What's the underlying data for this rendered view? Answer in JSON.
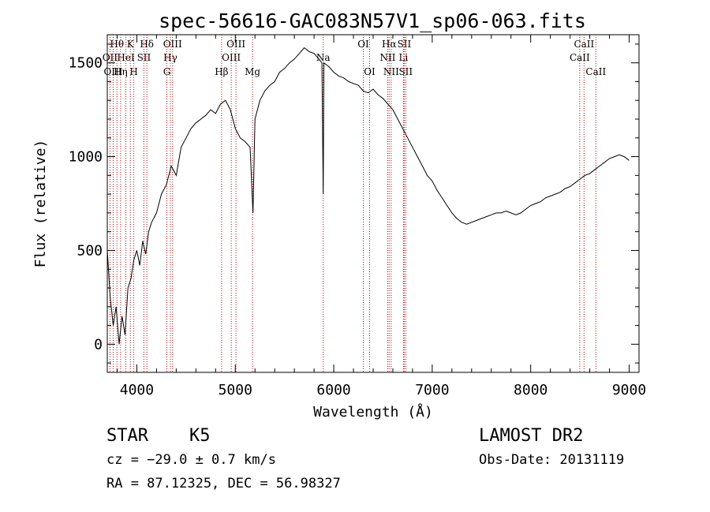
{
  "figure": {
    "title": "spec-56616-GAC083N57V1_sp06-063.fits",
    "object_class": "STAR",
    "subclass": "K5",
    "survey": "LAMOST DR2",
    "velocity": "cz = −29.0 ± 0.7 km/s",
    "obs_date": "Obs-Date: 20131119",
    "coords": "RA =  87.12325, DEC =  56.98327"
  },
  "chart_data": {
    "type": "line",
    "title": "spec-56616-GAC083N57V1_sp06-063.fits",
    "xlabel": "Wavelength (Å)",
    "ylabel": "Flux (relative)",
    "xlim": [
      3700,
      9100
    ],
    "ylim": [
      -150,
      1650
    ],
    "x_ticks": [
      4000,
      5000,
      6000,
      7000,
      8000,
      9000
    ],
    "y_ticks": [
      0,
      500,
      1000,
      1500
    ],
    "grid": false,
    "line_color": "#000000",
    "marker_color": "#cc0000",
    "series": [
      {
        "x": [
          3700,
          3730,
          3760,
          3790,
          3820,
          3850,
          3880,
          3910,
          3940,
          3970,
          4000,
          4030,
          4060,
          4090,
          4120,
          4150,
          4200,
          4250,
          4300,
          4350,
          4400,
          4450,
          4500,
          4550,
          4600,
          4650,
          4700,
          4750,
          4800,
          4850,
          4900,
          4950,
          5000,
          5050,
          5100,
          5150,
          5180,
          5200,
          5250,
          5300,
          5350,
          5400,
          5450,
          5500,
          5550,
          5600,
          5650,
          5700,
          5750,
          5800,
          5850,
          5880,
          5893,
          5900,
          5950,
          6000,
          6050,
          6100,
          6150,
          6200,
          6250,
          6300,
          6350,
          6400,
          6450,
          6500,
          6550,
          6600,
          6650,
          6700,
          6750,
          6800,
          6850,
          6900,
          6950,
          7000,
          7050,
          7100,
          7150,
          7200,
          7250,
          7300,
          7350,
          7400,
          7450,
          7500,
          7550,
          7600,
          7650,
          7700,
          7750,
          7800,
          7850,
          7900,
          7950,
          8000,
          8050,
          8100,
          8150,
          8200,
          8250,
          8300,
          8350,
          8400,
          8450,
          8500,
          8550,
          8600,
          8650,
          8700,
          8750,
          8800,
          8850,
          8900,
          8950,
          9000
        ],
        "y": [
          500,
          250,
          100,
          200,
          0,
          150,
          50,
          300,
          350,
          450,
          500,
          420,
          550,
          480,
          600,
          650,
          700,
          800,
          850,
          950,
          900,
          1050,
          1100,
          1150,
          1180,
          1200,
          1220,
          1250,
          1230,
          1280,
          1300,
          1250,
          1150,
          1100,
          1080,
          1050,
          700,
          1200,
          1300,
          1350,
          1380,
          1400,
          1450,
          1470,
          1500,
          1520,
          1550,
          1580,
          1560,
          1550,
          1520,
          1500,
          800,
          1500,
          1480,
          1450,
          1430,
          1420,
          1400,
          1390,
          1380,
          1350,
          1340,
          1360,
          1330,
          1310,
          1280,
          1250,
          1200,
          1150,
          1100,
          1050,
          1000,
          950,
          900,
          870,
          820,
          780,
          740,
          700,
          670,
          650,
          640,
          650,
          660,
          670,
          680,
          690,
          700,
          700,
          710,
          700,
          690,
          700,
          720,
          740,
          750,
          760,
          780,
          790,
          800,
          810,
          830,
          840,
          860,
          880,
          900,
          910,
          930,
          950,
          970,
          990,
          1000,
          1010,
          1000,
          980
        ]
      }
    ],
    "line_markers": [
      {
        "label": "Hθ",
        "x": 3798,
        "row": 0
      },
      {
        "label": "OII",
        "x": 3727,
        "row": 1
      },
      {
        "label": "OIII",
        "x": 3760,
        "row": 2
      },
      {
        "label": "K",
        "x": 3934,
        "row": 0
      },
      {
        "label": "HeI",
        "x": 3889,
        "row": 1
      },
      {
        "label": "Hη",
        "x": 3835,
        "row": 2
      },
      {
        "label": "Hδ",
        "x": 4102,
        "row": 0
      },
      {
        "label": "SII",
        "x": 4072,
        "row": 1
      },
      {
        "label": "H",
        "x": 3969,
        "row": 2
      },
      {
        "label": "OIII",
        "x": 4363,
        "row": 0
      },
      {
        "label": "Hγ",
        "x": 4341,
        "row": 1
      },
      {
        "label": "G",
        "x": 4305,
        "row": 2
      },
      {
        "label": "OIII",
        "x": 5007,
        "row": 0
      },
      {
        "label": "OIII",
        "x": 4959,
        "row": 1
      },
      {
        "label": "Hβ",
        "x": 4861,
        "row": 2
      },
      {
        "label": "Mg",
        "x": 5175,
        "row": 2
      },
      {
        "label": "Na",
        "x": 5893,
        "row": 1
      },
      {
        "label": "OI",
        "x": 6300,
        "row": 0
      },
      {
        "label": "OI",
        "x": 6364,
        "row": 2
      },
      {
        "label": "Hα",
        "x": 6563,
        "row": 0
      },
      {
        "label": "SII",
        "x": 6716,
        "row": 0
      },
      {
        "label": "NII",
        "x": 6548,
        "row": 1
      },
      {
        "label": "Li",
        "x": 6708,
        "row": 1
      },
      {
        "label": "NII",
        "x": 6583,
        "row": 2
      },
      {
        "label": "SII",
        "x": 6731,
        "row": 2
      },
      {
        "label": "CaII",
        "x": 8542,
        "row": 0
      },
      {
        "label": "CaII",
        "x": 8498,
        "row": 1
      },
      {
        "label": "CaII",
        "x": 8662,
        "row": 2
      }
    ]
  }
}
